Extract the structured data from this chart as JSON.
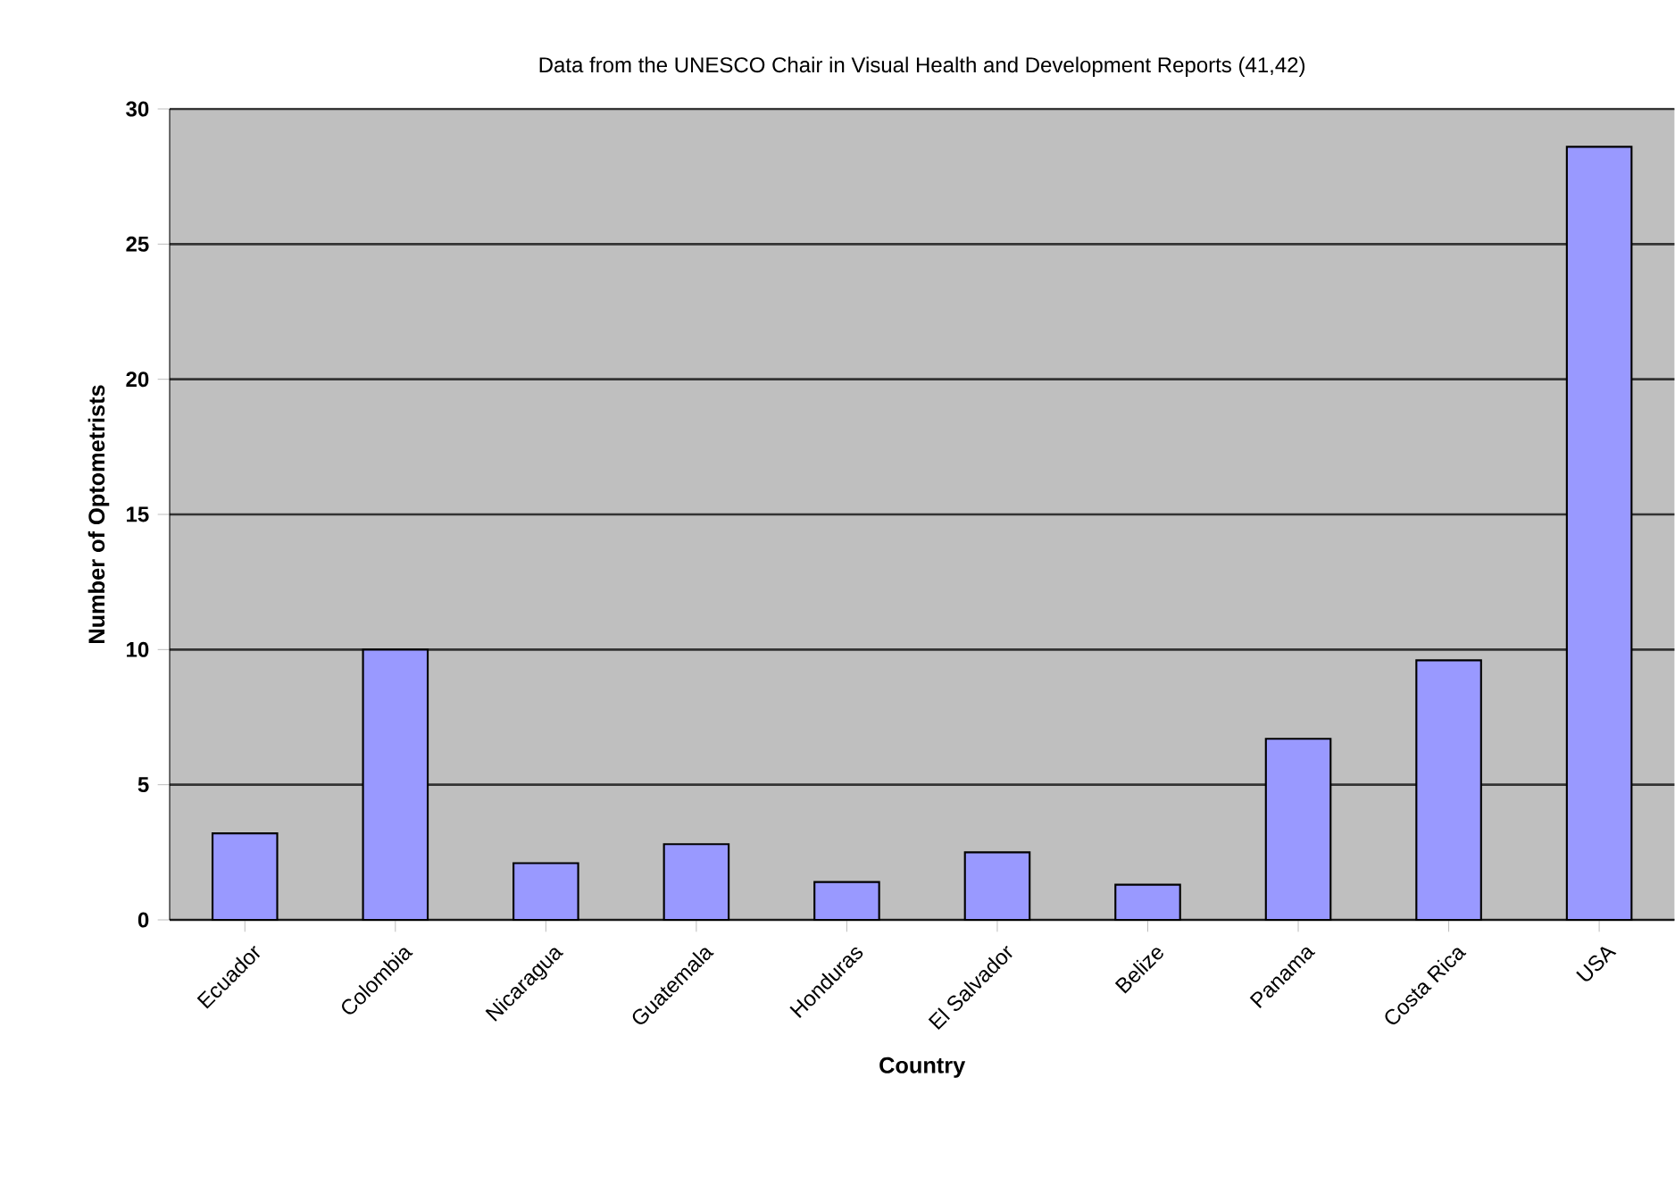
{
  "chart_data": {
    "type": "bar",
    "title": "Data from the UNESCO Chair in Visual Health and Development Reports (41,42)",
    "xlabel": "Country",
    "ylabel": "Number of Optometrists",
    "categories": [
      "Ecuador",
      "Colombia",
      "Nicaragua",
      "Guatemala",
      "Honduras",
      "El Salvador",
      "Belize",
      "Panama",
      "Costa Rica",
      "USA"
    ],
    "values": [
      3.2,
      10,
      2.1,
      2.8,
      1.4,
      2.5,
      1.3,
      6.7,
      9.6,
      28.6
    ],
    "color": "#9999ff",
    "ylim": [
      0,
      30
    ],
    "yticks": [
      0,
      5,
      10,
      15,
      20,
      25,
      30
    ],
    "grid": "y"
  }
}
